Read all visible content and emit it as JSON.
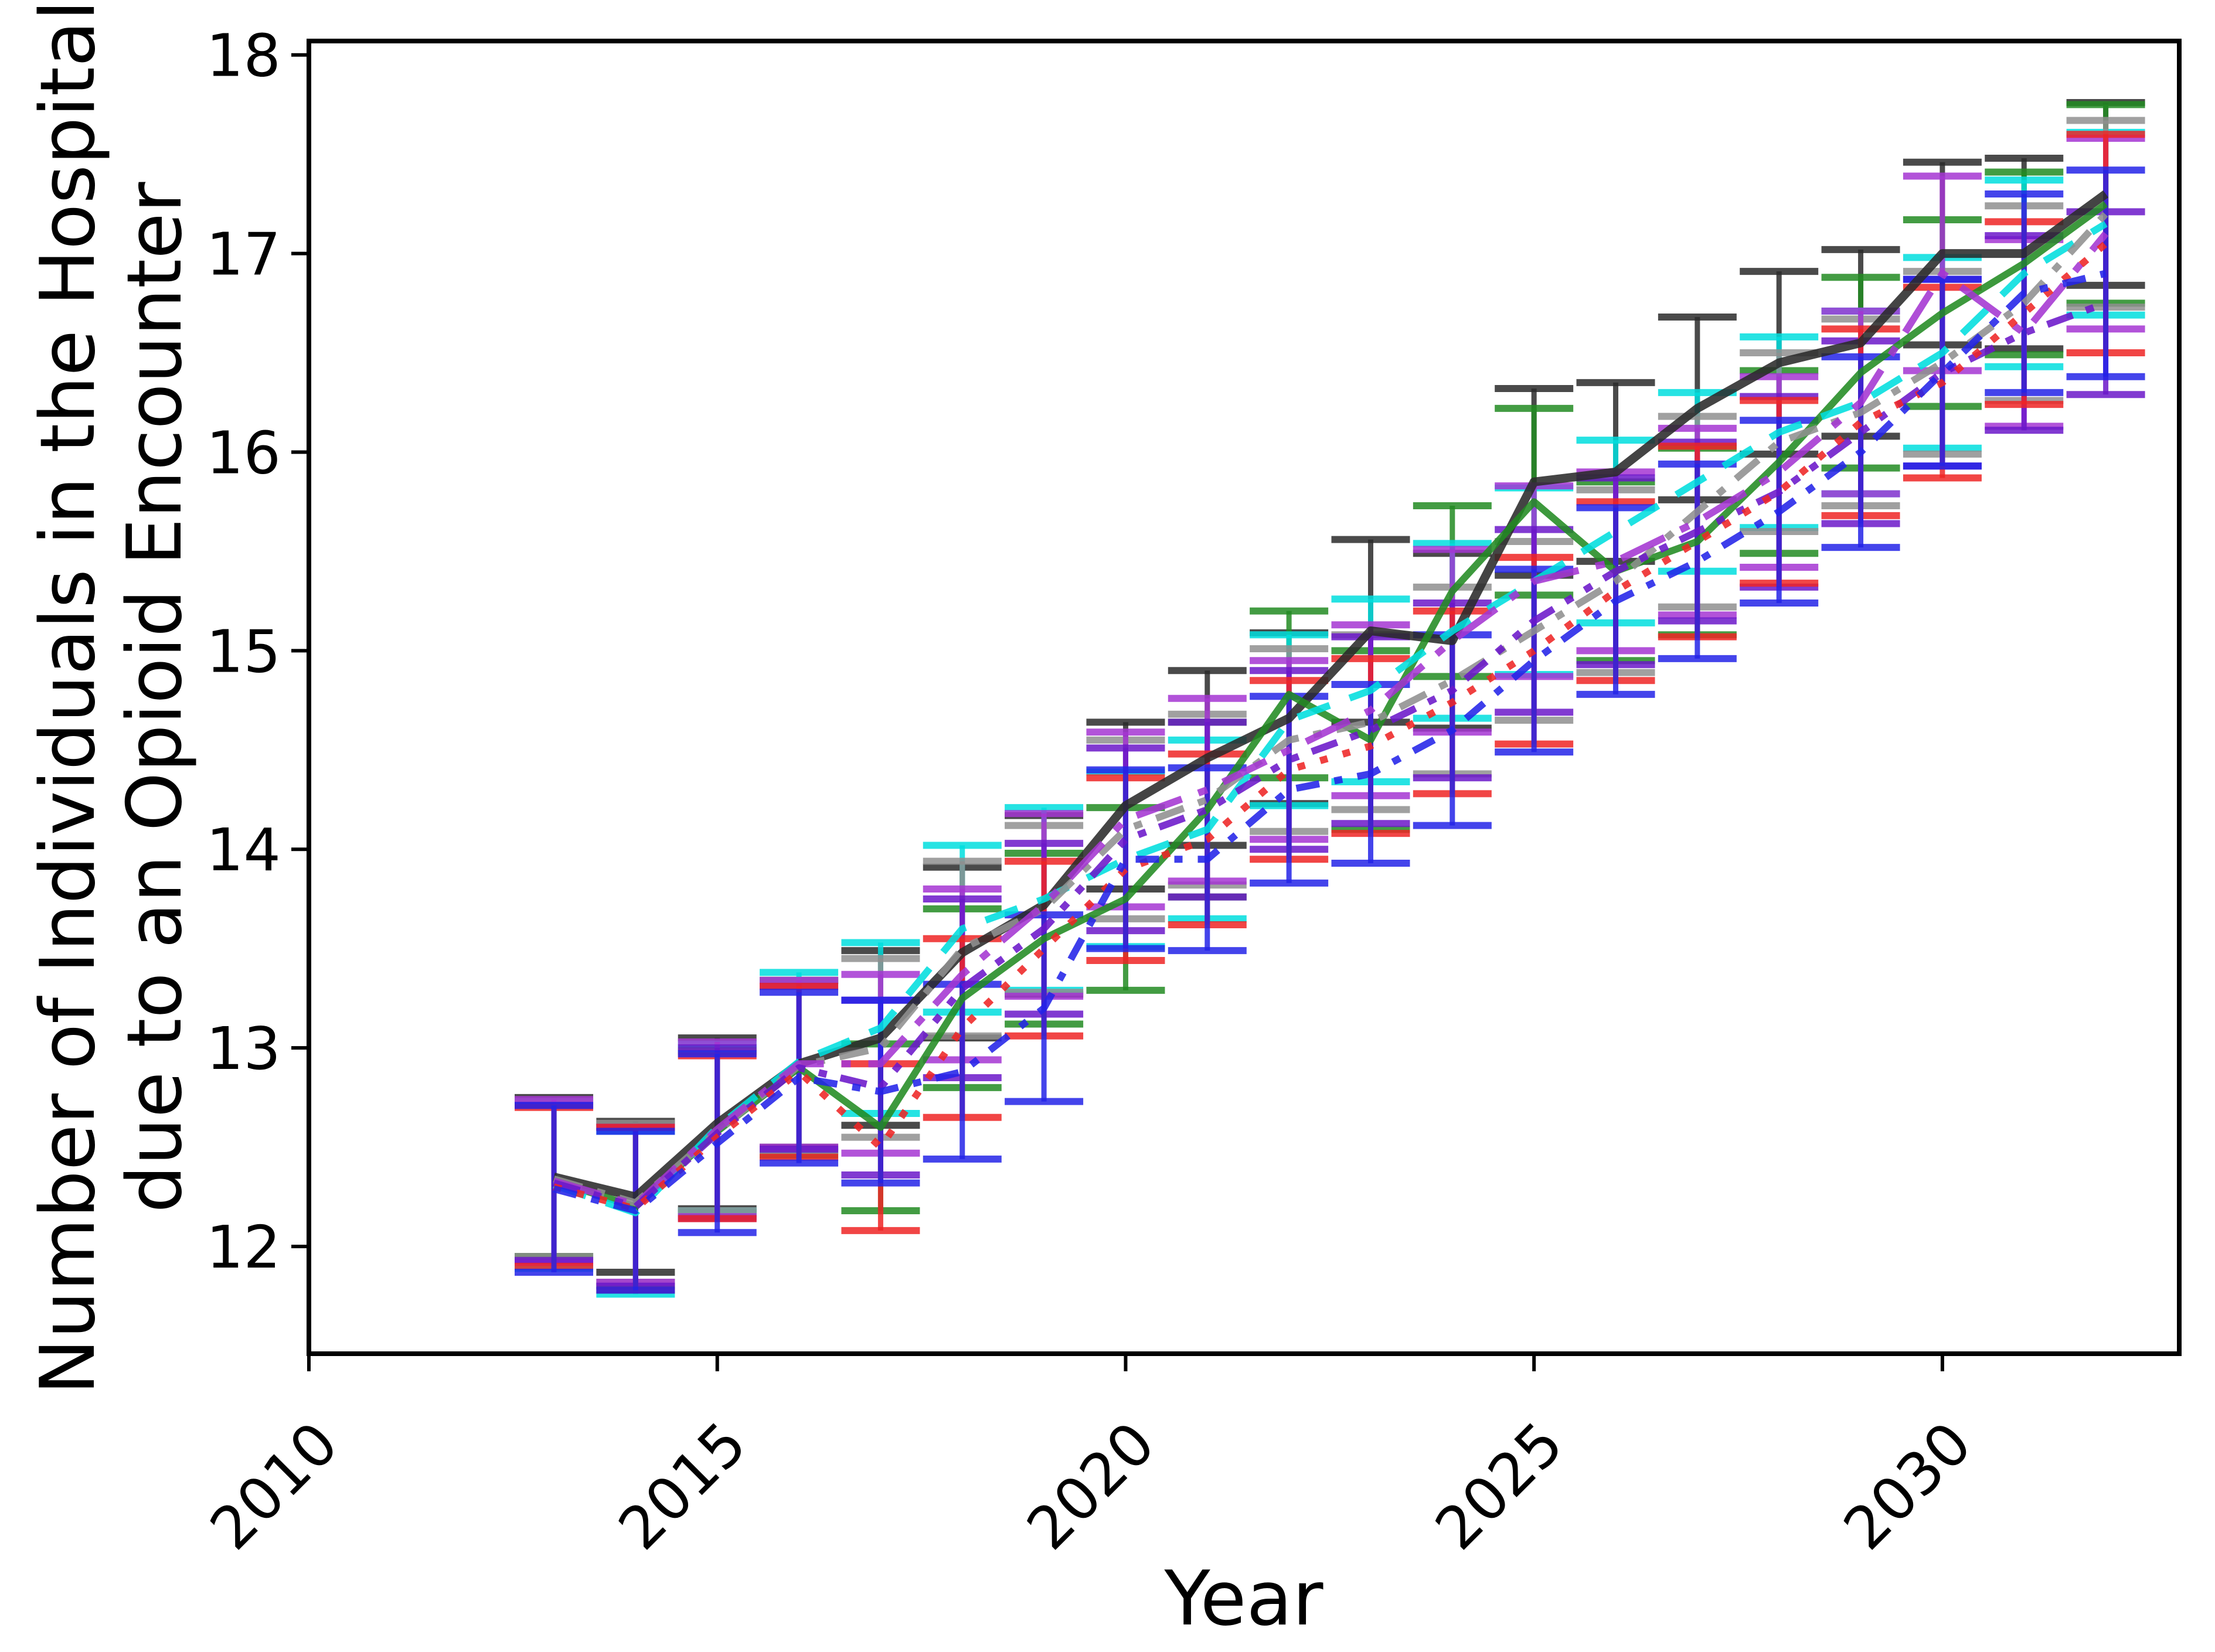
{
  "chart_data": {
    "type": "line",
    "title": "",
    "xlabel": "Year",
    "ylabel_line1": "Number of Individuals in the Hospital",
    "ylabel_line2": "due to an Opioid Encounter",
    "legend_position": "none",
    "grid": false,
    "error_bars": true,
    "xlim": [
      2010,
      2032.9
    ],
    "ylim": [
      11.46,
      18.07
    ],
    "x_ticks": [
      2010,
      2015,
      2020,
      2025,
      2030
    ],
    "x_tick_labels": [
      "2010",
      "2015",
      "2020",
      "2025",
      "2030"
    ],
    "y_ticks": [
      12,
      13,
      14,
      15,
      16,
      17,
      18
    ],
    "y_tick_labels": [
      "12",
      "13",
      "14",
      "15",
      "16",
      "17",
      "18"
    ],
    "x": [
      2013,
      2014,
      2015,
      2016,
      2017,
      2018,
      2019,
      2020,
      2021,
      2022,
      2023,
      2024,
      2025,
      2026,
      2027,
      2028,
      2029,
      2030,
      2031,
      2032
    ],
    "series": [
      {
        "name": "black-solid",
        "color": "#2a2a2a",
        "style": "solid",
        "values": [
          12.35,
          12.25,
          12.62,
          12.92,
          13.05,
          13.48,
          13.72,
          14.22,
          14.46,
          14.66,
          15.1,
          15.05,
          15.85,
          15.9,
          16.22,
          16.45,
          16.55,
          17.0,
          17.0,
          17.3
        ],
        "ci": [
          0.4,
          0.38,
          0.43,
          0.42,
          0.44,
          0.43,
          0.45,
          0.42,
          0.44,
          0.43,
          0.46,
          0.44,
          0.47,
          0.45,
          0.46,
          0.46,
          0.47,
          0.46,
          0.48,
          0.46
        ]
      },
      {
        "name": "green-solid",
        "color": "#228b22",
        "style": "solid",
        "values": [
          12.33,
          12.2,
          12.58,
          12.9,
          12.6,
          13.25,
          13.55,
          13.75,
          14.2,
          14.78,
          14.55,
          15.3,
          15.75,
          15.4,
          15.55,
          15.95,
          16.4,
          16.7,
          16.95,
          17.25
        ],
        "ci": [
          0.38,
          0.4,
          0.41,
          0.44,
          0.42,
          0.45,
          0.43,
          0.46,
          0.44,
          0.42,
          0.45,
          0.43,
          0.47,
          0.45,
          0.47,
          0.46,
          0.48,
          0.47,
          0.46,
          0.5
        ]
      },
      {
        "name": "cyan-dashed",
        "color": "#00dede",
        "style": "dashed",
        "values": [
          12.31,
          12.17,
          12.6,
          12.93,
          13.1,
          13.6,
          13.75,
          13.95,
          14.1,
          14.65,
          14.8,
          15.1,
          15.35,
          15.6,
          15.85,
          16.1,
          16.25,
          16.5,
          16.9,
          17.15
        ],
        "ci": [
          0.42,
          0.41,
          0.42,
          0.45,
          0.43,
          0.42,
          0.46,
          0.44,
          0.45,
          0.43,
          0.46,
          0.44,
          0.47,
          0.46,
          0.45,
          0.48,
          0.46,
          0.48,
          0.47,
          0.46
        ]
      },
      {
        "name": "gray-dash-dot",
        "color": "#8f8f8f",
        "style": "dash-dot",
        "values": [
          12.34,
          12.22,
          12.58,
          12.91,
          13.0,
          13.5,
          13.7,
          14.1,
          14.25,
          14.55,
          14.64,
          14.85,
          15.1,
          15.35,
          15.7,
          16.05,
          16.2,
          16.45,
          16.75,
          17.2
        ],
        "ci": [
          0.39,
          0.4,
          0.4,
          0.43,
          0.45,
          0.44,
          0.42,
          0.45,
          0.43,
          0.46,
          0.44,
          0.47,
          0.45,
          0.46,
          0.48,
          0.45,
          0.47,
          0.46,
          0.49,
          0.47
        ]
      },
      {
        "name": "purple-dash-dot",
        "color": "#a435d2",
        "style": "long-dash-dot",
        "values": [
          12.33,
          12.21,
          12.59,
          12.92,
          12.92,
          13.37,
          13.72,
          14.15,
          14.3,
          14.5,
          14.7,
          15.05,
          15.35,
          15.45,
          15.65,
          15.9,
          16.25,
          16.9,
          16.6,
          17.1
        ],
        "ci": [
          0.41,
          0.39,
          0.44,
          0.42,
          0.45,
          0.43,
          0.46,
          0.44,
          0.46,
          0.45,
          0.43,
          0.46,
          0.48,
          0.45,
          0.47,
          0.48,
          0.46,
          0.49,
          0.47,
          0.48
        ]
      },
      {
        "name": "violet-dash-dot-dot",
        "color": "#6b17c9",
        "style": "dash-dot-dot",
        "values": [
          12.32,
          12.2,
          12.57,
          12.9,
          12.8,
          13.3,
          13.6,
          14.05,
          14.2,
          14.45,
          14.6,
          14.8,
          15.15,
          15.4,
          15.6,
          15.8,
          16.1,
          16.4,
          16.6,
          16.75
        ],
        "ci": [
          0.39,
          0.4,
          0.43,
          0.41,
          0.44,
          0.45,
          0.43,
          0.46,
          0.44,
          0.45,
          0.47,
          0.44,
          0.46,
          0.47,
          0.45,
          0.48,
          0.46,
          0.47,
          0.49,
          0.46
        ]
      },
      {
        "name": "red-dotted",
        "color": "#ee2525",
        "style": "dotted",
        "values": [
          12.3,
          12.19,
          12.55,
          12.88,
          12.5,
          13.1,
          13.5,
          13.9,
          14.05,
          14.4,
          14.52,
          14.74,
          15.0,
          15.3,
          15.55,
          15.8,
          16.15,
          16.35,
          16.7,
          17.05
        ],
        "ci": [
          0.4,
          0.41,
          0.41,
          0.43,
          0.42,
          0.45,
          0.44,
          0.46,
          0.43,
          0.45,
          0.44,
          0.46,
          0.47,
          0.45,
          0.48,
          0.46,
          0.47,
          0.48,
          0.46,
          0.55
        ]
      },
      {
        "name": "blue-dash-dot",
        "color": "#2323e8",
        "style": "dash-dot-med",
        "values": [
          12.29,
          12.18,
          12.52,
          12.85,
          12.78,
          12.88,
          13.2,
          13.95,
          13.95,
          14.3,
          14.38,
          14.6,
          14.95,
          15.25,
          15.45,
          15.7,
          16.0,
          16.4,
          16.8,
          16.9
        ],
        "ci": [
          0.42,
          0.4,
          0.45,
          0.43,
          0.46,
          0.44,
          0.47,
          0.45,
          0.46,
          0.47,
          0.45,
          0.48,
          0.46,
          0.47,
          0.49,
          0.46,
          0.48,
          0.47,
          0.5,
          0.52
        ]
      }
    ]
  }
}
